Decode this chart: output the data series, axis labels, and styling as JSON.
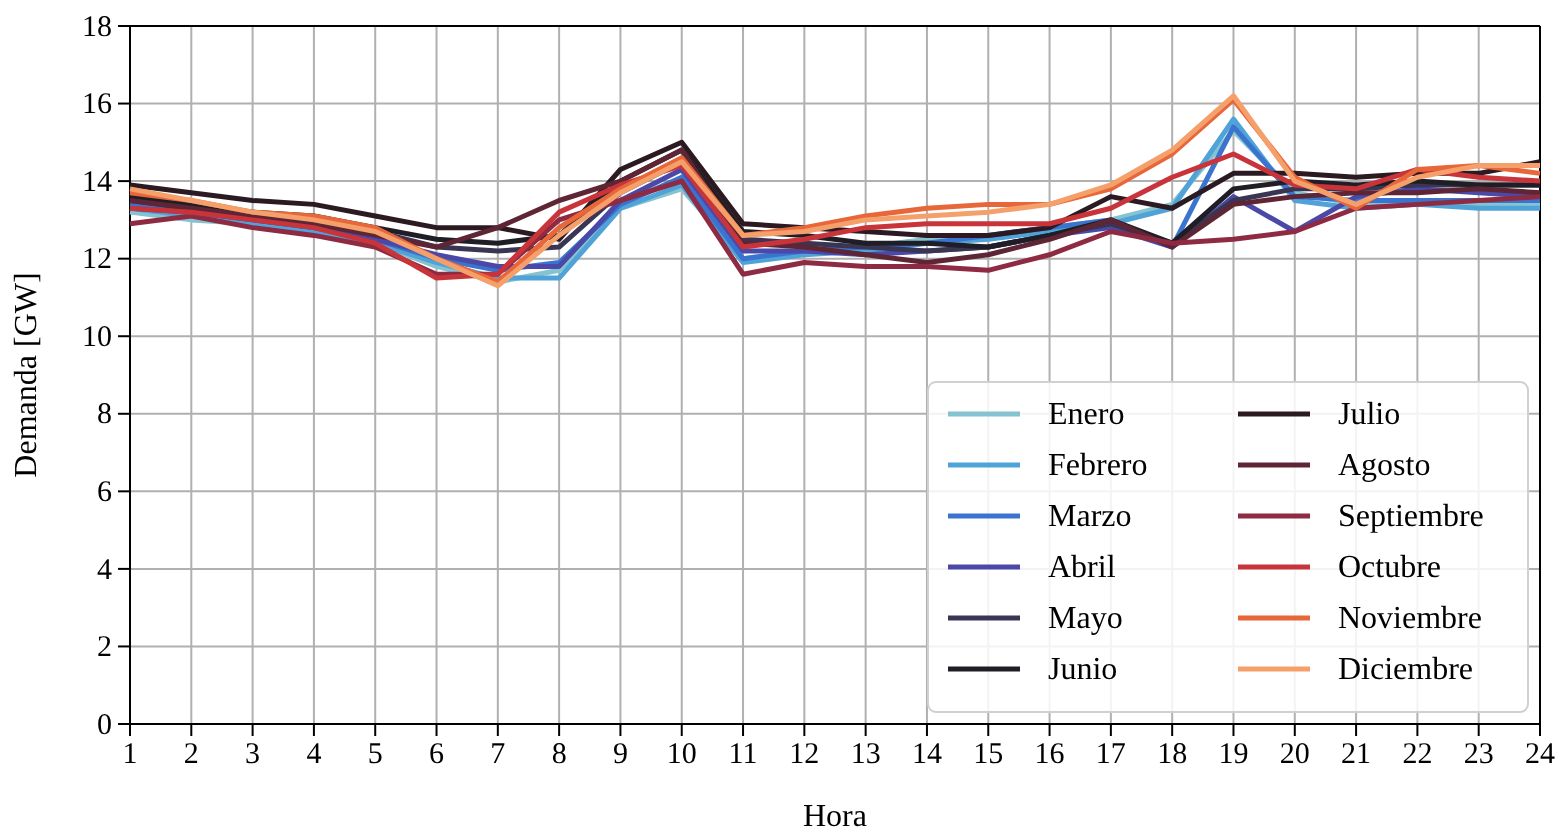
{
  "chart_data": {
    "type": "line",
    "xlabel": "Hora",
    "ylabel": "Demanda [GW]",
    "x": [
      1,
      2,
      3,
      4,
      5,
      6,
      7,
      8,
      9,
      10,
      11,
      12,
      13,
      14,
      15,
      16,
      17,
      18,
      19,
      20,
      21,
      22,
      23,
      24
    ],
    "xlim": [
      1,
      24
    ],
    "xticks": [
      1,
      2,
      3,
      4,
      5,
      6,
      7,
      8,
      9,
      10,
      11,
      12,
      13,
      14,
      15,
      16,
      17,
      18,
      19,
      20,
      21,
      22,
      23,
      24
    ],
    "ylim": [
      0,
      18
    ],
    "yticks": [
      0,
      2,
      4,
      6,
      8,
      10,
      12,
      14,
      16,
      18
    ],
    "grid": true,
    "legend": "bottom right",
    "line_style": "solid",
    "marker": "none",
    "series": [
      {
        "name": "Enero",
        "color": "#86c3d0",
        "values": [
          13.2,
          13.0,
          12.9,
          12.7,
          12.4,
          11.8,
          11.4,
          11.7,
          13.3,
          13.8,
          12.0,
          12.2,
          12.3,
          12.5,
          12.6,
          12.8,
          13.0,
          13.4,
          15.3,
          13.7,
          13.4,
          13.5,
          13.4,
          13.4
        ]
      },
      {
        "name": "Febrero",
        "color": "#4fa3d8",
        "values": [
          13.3,
          13.1,
          12.9,
          12.7,
          12.4,
          11.9,
          11.5,
          11.5,
          13.3,
          13.9,
          11.9,
          12.1,
          12.2,
          12.4,
          12.5,
          12.7,
          12.9,
          13.3,
          15.6,
          13.5,
          13.3,
          13.4,
          13.3,
          13.3
        ]
      },
      {
        "name": "Marzo",
        "color": "#3a74cf",
        "values": [
          13.4,
          13.2,
          13.0,
          12.8,
          12.5,
          12.0,
          11.7,
          11.9,
          13.4,
          14.1,
          12.0,
          12.2,
          12.3,
          12.4,
          12.6,
          12.8,
          13.0,
          12.3,
          15.4,
          13.6,
          13.5,
          13.5,
          13.5,
          13.5
        ]
      },
      {
        "name": "Abril",
        "color": "#4a49a8",
        "values": [
          13.3,
          13.2,
          13.0,
          12.8,
          12.5,
          12.1,
          11.8,
          11.8,
          13.5,
          14.3,
          12.2,
          12.2,
          12.1,
          12.2,
          12.3,
          12.6,
          12.8,
          12.3,
          13.6,
          12.7,
          13.6,
          13.8,
          13.7,
          13.6
        ]
      },
      {
        "name": "Mayo",
        "color": "#3a3552",
        "values": [
          13.5,
          13.3,
          13.1,
          12.9,
          12.7,
          12.3,
          12.2,
          12.3,
          13.7,
          14.5,
          12.5,
          12.4,
          12.3,
          12.2,
          12.3,
          12.6,
          12.9,
          12.4,
          13.5,
          13.8,
          13.8,
          13.9,
          13.9,
          13.9
        ]
      },
      {
        "name": "Junio",
        "color": "#1f1e26",
        "values": [
          13.6,
          13.4,
          13.2,
          13.1,
          12.8,
          12.5,
          12.4,
          12.6,
          14.0,
          14.8,
          12.7,
          12.6,
          12.4,
          12.4,
          12.3,
          12.6,
          13.0,
          12.4,
          13.8,
          14.0,
          13.9,
          14.0,
          13.9,
          13.9
        ]
      },
      {
        "name": "Julio",
        "color": "#2b1a22",
        "values": [
          13.9,
          13.7,
          13.5,
          13.4,
          13.1,
          12.8,
          12.8,
          12.5,
          14.3,
          15.0,
          12.9,
          12.8,
          12.7,
          12.6,
          12.6,
          12.8,
          13.6,
          13.3,
          14.2,
          14.2,
          14.1,
          14.2,
          14.2,
          14.5
        ]
      },
      {
        "name": "Agosto",
        "color": "#5e2534",
        "values": [
          13.5,
          13.3,
          13.1,
          12.9,
          12.6,
          12.3,
          12.8,
          13.5,
          14.0,
          14.8,
          12.4,
          12.3,
          12.1,
          11.9,
          12.1,
          12.5,
          13.0,
          12.3,
          13.4,
          13.6,
          13.7,
          13.7,
          13.8,
          13.7
        ]
      },
      {
        "name": "Septiembre",
        "color": "#8e2b43",
        "values": [
          12.9,
          13.1,
          12.8,
          12.6,
          12.3,
          11.6,
          11.6,
          13.0,
          13.5,
          14.0,
          11.6,
          11.9,
          11.8,
          11.8,
          11.7,
          12.1,
          12.7,
          12.4,
          12.5,
          12.7,
          13.3,
          13.4,
          13.5,
          13.6
        ]
      },
      {
        "name": "Octubre",
        "color": "#c9343a",
        "values": [
          13.3,
          13.2,
          13.0,
          12.8,
          12.4,
          11.5,
          11.6,
          13.2,
          13.9,
          14.4,
          12.3,
          12.5,
          12.8,
          12.9,
          12.9,
          12.9,
          13.3,
          14.1,
          14.7,
          13.9,
          13.8,
          14.3,
          14.1,
          14.0
        ]
      },
      {
        "name": "Noviembre",
        "color": "#e8673a",
        "values": [
          13.7,
          13.5,
          13.2,
          13.1,
          12.8,
          12.0,
          11.4,
          12.8,
          13.8,
          14.6,
          12.6,
          12.8,
          13.1,
          13.3,
          13.4,
          13.4,
          13.8,
          14.7,
          16.1,
          14.1,
          13.3,
          14.3,
          14.4,
          14.2
        ]
      },
      {
        "name": "Diciembre",
        "color": "#f5a06a",
        "values": [
          13.8,
          13.5,
          13.2,
          13.0,
          12.7,
          12.0,
          11.3,
          12.6,
          13.7,
          14.5,
          12.6,
          12.7,
          13.0,
          13.1,
          13.2,
          13.4,
          13.9,
          14.8,
          16.2,
          14.0,
          13.4,
          14.1,
          14.4,
          14.4
        ]
      }
    ]
  }
}
